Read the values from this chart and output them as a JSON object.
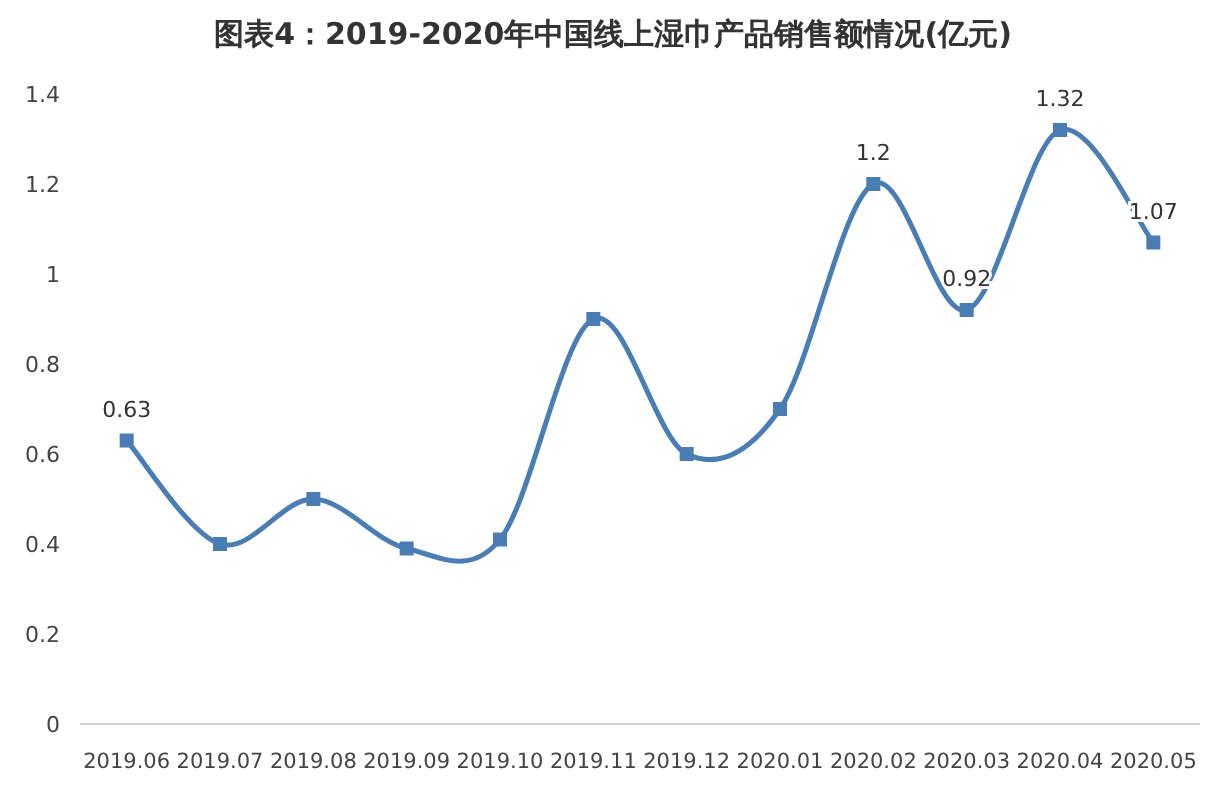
{
  "chart_data": {
    "type": "line",
    "title": "图表4：2019-2020年中国线上湿巾产品销售额情况(亿元)",
    "categories": [
      "2019.06",
      "2019.07",
      "2019.08",
      "2019.09",
      "2019.10",
      "2019.11",
      "2019.12",
      "2020.01",
      "2020.02",
      "2020.03",
      "2020.04",
      "2020.05"
    ],
    "series": [
      {
        "color": "#4a7db4",
        "values": [
          0.63,
          0.4,
          0.5,
          0.39,
          0.41,
          0.9,
          0.6,
          0.7,
          1.2,
          0.92,
          1.32,
          1.07
        ],
        "value_labels": [
          "0.63",
          null,
          null,
          null,
          null,
          null,
          null,
          null,
          "1.2",
          "0.92",
          "1.32",
          "1.07"
        ]
      }
    ],
    "ylim": [
      0,
      1.4
    ],
    "yticks": [
      0,
      0.2,
      0.4,
      0.6,
      0.8,
      1,
      1.2,
      1.4
    ],
    "marker": "square",
    "line_style": "solid"
  }
}
